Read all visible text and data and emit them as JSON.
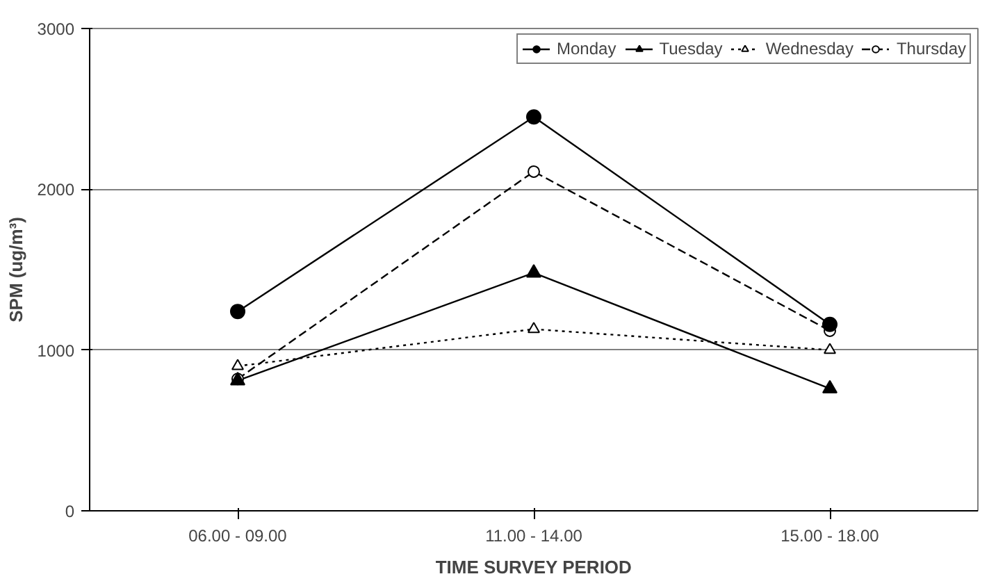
{
  "chart_data": {
    "type": "line",
    "xlabel": "TIME SURVEY PERIOD",
    "ylabel": "SPM (ug/m³)",
    "categories": [
      "06.00 - 09.00",
      "11.00 - 14.00",
      "15.00 - 18.00"
    ],
    "series": [
      {
        "name": "Monday",
        "color": "#000000",
        "values": [
          1240,
          2450,
          1160
        ],
        "marker": "circle",
        "line_style": "solid"
      },
      {
        "name": "Tuesday",
        "color": "#000000",
        "values": [
          810,
          1480,
          760
        ],
        "marker": "triangle",
        "line_style": "solid"
      },
      {
        "name": "Wednesday",
        "color": "#000000",
        "values": [
          900,
          1130,
          1000
        ],
        "marker": "triangle",
        "line_style": "dotted"
      },
      {
        "name": "Thursday",
        "color": "#000000",
        "values": [
          820,
          2110,
          1120
        ],
        "marker": "circle",
        "line_style": "dashed"
      }
    ],
    "ylim": [
      0,
      3000
    ],
    "yticks": [
      0,
      1000,
      2000,
      3000
    ],
    "grid": "y",
    "legend": "top right"
  }
}
